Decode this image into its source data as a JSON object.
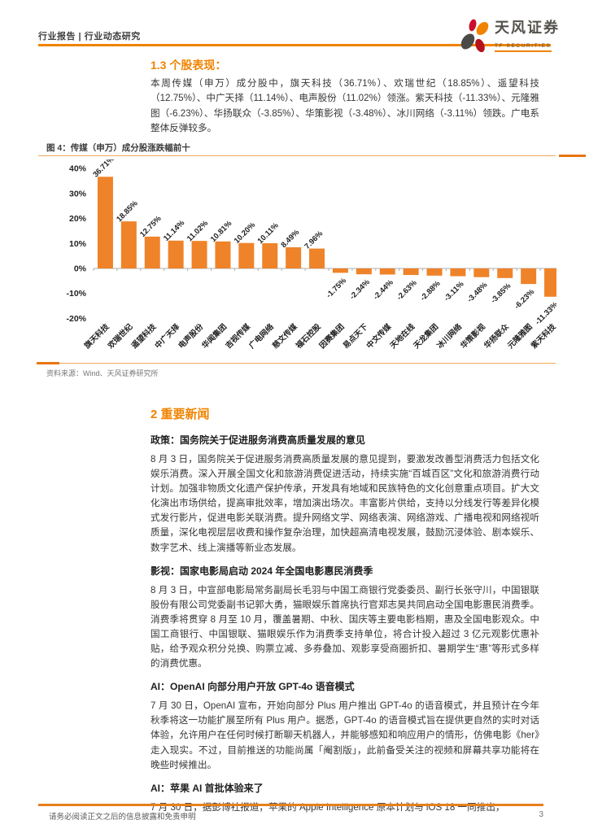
{
  "header": {
    "left": "行业报告 | 行业动态研究",
    "brand_name": "天风证券",
    "brand_sub": "TF SECURITIES"
  },
  "section_1": {
    "heading": "1.3 个股表现：",
    "paragraph": "本周传媒（申万）成分股中，旗天科技（36.71%）、欢瑞世纪（18.85%）、遥望科技（12.75%）、中广天择（11.14%）、电声股份（11.02%）领涨。紫天科技（-11.33%）、元隆雅图（-6.23%）、华扬联众（-3.85%）、华策影视（-3.48%）、冰川网络（-3.11%）领跌。广电系整体反弹较多。"
  },
  "figure": {
    "title": "图 4：传媒（申万）成分股涨跌幅前十",
    "source": "资料来源：Wind、天风证券研究所"
  },
  "chart_data": {
    "type": "bar",
    "title": "传媒（申万）成分股涨跌幅前十",
    "categories": [
      "旗天科技",
      "欢瑞世纪",
      "遥望科技",
      "中广天择",
      "电声股份",
      "华闻集团",
      "吉视传媒",
      "广电网络",
      "慈文传媒",
      "福石控股",
      "因赛集团",
      "易点天下",
      "中文传媒",
      "天地在线",
      "天龙集团",
      "冰川网络",
      "华策影视",
      "华扬联众",
      "元隆雅图",
      "紫天科技"
    ],
    "values": [
      36.71,
      18.85,
      12.75,
      11.14,
      11.02,
      10.81,
      10.2,
      10.11,
      8.49,
      7.96,
      -1.75,
      -2.34,
      -2.44,
      -2.63,
      -2.88,
      -3.11,
      -3.48,
      -3.85,
      -6.23,
      -11.33
    ],
    "value_suffix": "%",
    "xlabel": "",
    "ylabel": "",
    "ylim": [
      -20,
      40
    ],
    "ytick_step": 10,
    "grid": false,
    "legend": false,
    "bar_color": "#EF8329"
  },
  "section_2": {
    "heading": "2 重要新闻",
    "news": [
      {
        "heading": "政策：国务院关于促进服务消费高质量发展的意见",
        "body": "8 月 3 日，国务院关于促进服务消费高质量发展的意见提到，要激发改善型消费活力包括文化娱乐消费。深入开展全国文化和旅游消费促进活动，持续实施“百城百区”文化和旅游消费行动计划。加强非物质文化遗产保护传承，开发具有地域和民族特色的文化创意重点项目。扩大文化演出市场供给，提高审批效率，增加演出场次。丰富影片供给，支持以分线发行等差异化模式发行影片，促进电影关联消费。提升网络文学、网络表演、网络游戏、广播电视和网络视听质量，深化电视层层收费和操作复杂治理，加快超高清电视发展，鼓励沉浸体验、剧本娱乐、数字艺术、线上演播等新业态发展。"
      },
      {
        "heading": "影视：国家电影局启动 2024 年全国电影惠民消费季",
        "body": "8 月 3 日，中宣部电影局常务副局长毛羽与中国工商银行党委委员、副行长张守川，中国银联股份有限公司党委副书记郭大勇，猫眼娱乐首席执行官郑志昊共同启动全国电影惠民消费季。消费季将贯穿 8 月至 10 月，覆盖暑期、中秋、国庆等主要电影档期，惠及全国电影观众。中国工商银行、中国银联、猫眼娱乐作为消费季支持单位，将合计投入超过 3 亿元观影优惠补贴，给予观众积分兑换、购票立减、多券叠加、观影享受商圈折扣、暑期学生“惠”等形式多样的消费优惠。"
      },
      {
        "heading": "AI：OpenAI 向部分用户开放 GPT-4o 语音模式",
        "body": "7 月 30 日，OpenAI 宣布，开始向部分 Plus 用户推出 GPT-4o 的语音模式，并且预计在今年秋季将这一功能扩展至所有 Plus 用户。据悉，GPT-4o 的语音模式旨在提供更自然的实时对话体验，允许用户在任何时候打断聊天机器人，并能够感知和响应用户的情形，仿佛电影《her》走入现实。不过，目前推送的功能尚属「阉割版」，此前备受关注的视频和屏幕共享功能将在晚些时候推出。"
      },
      {
        "heading": "AI：苹果 AI 首批体验来了",
        "body": "7 月 30 日，据彭博社报道，苹果的 Apple Intelligence 原本计划与 iOS 18 一同推出，"
      }
    ]
  },
  "footer": {
    "disclaimer": "请务必阅读正文之后的信息披露和免责申明",
    "page": "3"
  },
  "colors": {
    "accent": "#F08300",
    "rule_light": "#F2A75C",
    "rule_dark": "#E87511",
    "bar": "#EF8329"
  }
}
